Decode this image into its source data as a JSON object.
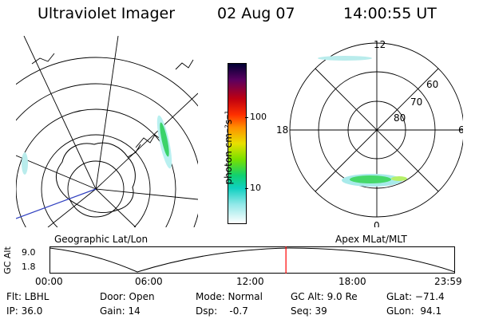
{
  "header": {
    "instrument": "Ultraviolet Imager",
    "date": "02 Aug 07",
    "time": "14:00:55 UT"
  },
  "panels": {
    "left_label": "Geographic Lat/Lon",
    "right_label": "Apex MLat/MLT"
  },
  "colorbar": {
    "label": "photon cm⁻²s⁻¹",
    "ticks": [
      "100",
      "10"
    ]
  },
  "mlt_plot": {
    "hour_labels": [
      "12",
      "6",
      "0",
      "18"
    ],
    "lat_labels": [
      "60",
      "70",
      "80"
    ]
  },
  "altitude_strip": {
    "ylabel": "GC Alt",
    "y_ticks": [
      "9.0",
      "1.8"
    ],
    "x_ticks": [
      "00:00",
      "06:00",
      "12:00",
      "18:00",
      "23:59"
    ],
    "marker_fraction": 0.583,
    "marker_color": "#ff0000"
  },
  "status": {
    "flt": "Flt: LBHL",
    "ip": "IP: 36.0",
    "door": "Door: Open",
    "gain": "Gain: 14",
    "mode": "Mode: Normal",
    "dsp": "Dsp:    -0.7",
    "gc_alt": "GC Alt: 9.0 Re",
    "seq": "Seq: 39",
    "glat": "GLat: −71.4",
    "glon": "GLon:  94.1"
  }
}
